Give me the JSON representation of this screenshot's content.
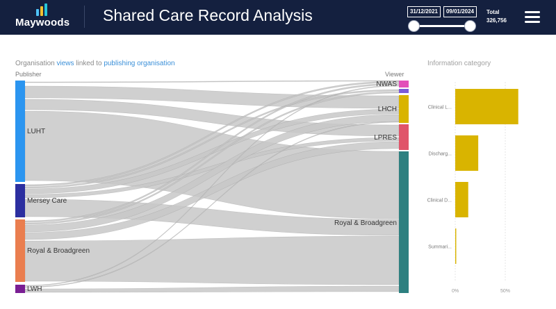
{
  "header": {
    "logo_text": "Maywoods",
    "title": "Shared Care Record Analysis",
    "date_start": "31/12/2021",
    "date_end": "09/01/2024",
    "total_label": "Total",
    "total_value": "326,756",
    "menu_icon": "hamburger-menu-icon",
    "logo_bar_colors": [
      "#4fc3f7",
      "#f2c230",
      "#26c6da"
    ],
    "background": "#14203f"
  },
  "sankey": {
    "title_parts": [
      "Organisation ",
      "views",
      " linked to ",
      "publishing organisation"
    ],
    "publisher_label": "Publisher",
    "viewer_label": "Viewer",
    "link_color": "#c8c8c8",
    "publishers": [
      {
        "id": "luht",
        "label": "LUHT",
        "color": "#2b95f0"
      },
      {
        "id": "mersey",
        "label": "Mersey Care",
        "color": "#2c2fa0"
      },
      {
        "id": "royal",
        "label": "Royal & Broadgreen",
        "color": "#ea7e4f"
      },
      {
        "id": "lwh",
        "label": "LWH",
        "color": "#7a1e93"
      }
    ],
    "viewers": [
      {
        "id": "nwas",
        "label": "NWAS",
        "color": "#e24fb9"
      },
      {
        "id": "other",
        "label": "",
        "color": "#7c5bd6"
      },
      {
        "id": "lhch",
        "label": "LHCH",
        "color": "#d9b400"
      },
      {
        "id": "lpres",
        "label": "LPRES",
        "color": "#e0556a"
      },
      {
        "id": "rb",
        "label": "Royal & Broadgreen",
        "color": "#2d8080"
      }
    ]
  },
  "bar_chart": {
    "title": "Information category",
    "color": "#d9b400",
    "x_ticks": [
      "0%",
      "50%"
    ]
  },
  "chart_data": {
    "type": "bar",
    "orientation": "horizontal",
    "title": "Information category",
    "categories": [
      "Clinical L...",
      "Discharg...",
      "Clinical D...",
      "Summari..."
    ],
    "values": [
      63,
      23,
      13,
      1
    ],
    "unit": "%",
    "xlim": [
      0,
      75
    ],
    "grid": true
  }
}
